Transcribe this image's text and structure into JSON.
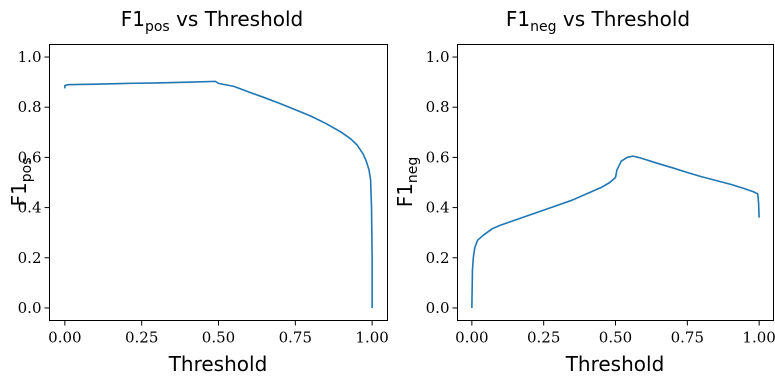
{
  "chart_data": [
    {
      "type": "line",
      "title": {
        "main": "F1",
        "sub": "pos",
        "rest": " vs Threshold"
      },
      "xlabel": "Threshold",
      "ylabel": {
        "main": "F1",
        "sub": "pos"
      },
      "xlim": [
        -0.05,
        1.05
      ],
      "ylim": [
        -0.05,
        1.05
      ],
      "xticks": [
        {
          "value": 0.0,
          "label": "0.00"
        },
        {
          "value": 0.25,
          "label": "0.25"
        },
        {
          "value": 0.5,
          "label": "0.50"
        },
        {
          "value": 0.75,
          "label": "0.75"
        },
        {
          "value": 1.0,
          "label": "1.00"
        }
      ],
      "yticks": [
        {
          "value": 0.0,
          "label": "0.0"
        },
        {
          "value": 0.2,
          "label": "0.2"
        },
        {
          "value": 0.4,
          "label": "0.4"
        },
        {
          "value": 0.6,
          "label": "0.6"
        },
        {
          "value": 0.8,
          "label": "0.8"
        },
        {
          "value": 1.0,
          "label": "1.0"
        }
      ],
      "grid": false,
      "color": "#1f77b4",
      "series": [
        {
          "x": [
            0.0,
            0.0,
            0.01,
            0.05,
            0.1,
            0.2,
            0.3,
            0.4,
            0.49,
            0.5,
            0.55,
            0.6,
            0.65,
            0.7,
            0.75,
            0.8,
            0.85,
            0.9,
            0.93,
            0.95,
            0.97,
            0.98,
            0.99,
            0.995,
            0.998,
            1.0,
            1.0
          ],
          "y": [
            0.875,
            0.886,
            0.89,
            0.891,
            0.892,
            0.895,
            0.897,
            0.9,
            0.903,
            0.895,
            0.883,
            0.86,
            0.838,
            0.815,
            0.79,
            0.765,
            0.735,
            0.7,
            0.674,
            0.651,
            0.615,
            0.588,
            0.55,
            0.51,
            0.4,
            0.2,
            0.0
          ]
        }
      ]
    },
    {
      "type": "line",
      "title": {
        "main": "F1",
        "sub": "neg",
        "rest": " vs Threshold"
      },
      "xlabel": "Threshold",
      "ylabel": {
        "main": "F1",
        "sub": "neg"
      },
      "xlim": [
        -0.05,
        1.05
      ],
      "ylim": [
        -0.05,
        1.05
      ],
      "xticks": [
        {
          "value": 0.0,
          "label": "0.00"
        },
        {
          "value": 0.25,
          "label": "0.25"
        },
        {
          "value": 0.5,
          "label": "0.50"
        },
        {
          "value": 0.75,
          "label": "0.75"
        },
        {
          "value": 1.0,
          "label": "1.00"
        }
      ],
      "yticks": [
        {
          "value": 0.0,
          "label": "0.0"
        },
        {
          "value": 0.2,
          "label": "0.2"
        },
        {
          "value": 0.4,
          "label": "0.4"
        },
        {
          "value": 0.6,
          "label": "0.6"
        },
        {
          "value": 0.8,
          "label": "0.8"
        },
        {
          "value": 1.0,
          "label": "1.0"
        }
      ],
      "grid": false,
      "color": "#1f77b4",
      "series": [
        {
          "x": [
            0.0,
            0.002,
            0.005,
            0.01,
            0.02,
            0.04,
            0.07,
            0.1,
            0.15,
            0.2,
            0.25,
            0.3,
            0.35,
            0.4,
            0.45,
            0.48,
            0.5,
            0.505,
            0.52,
            0.54,
            0.56,
            0.58,
            0.6,
            0.65,
            0.7,
            0.75,
            0.8,
            0.85,
            0.9,
            0.95,
            0.98,
            0.995,
            0.998,
            1.0
          ],
          "y": [
            0.0,
            0.15,
            0.2,
            0.24,
            0.27,
            0.29,
            0.315,
            0.33,
            0.35,
            0.37,
            0.39,
            0.41,
            0.43,
            0.455,
            0.48,
            0.5,
            0.52,
            0.55,
            0.585,
            0.6,
            0.605,
            0.6,
            0.593,
            0.575,
            0.558,
            0.54,
            0.523,
            0.508,
            0.493,
            0.475,
            0.463,
            0.455,
            0.42,
            0.36
          ]
        }
      ]
    }
  ]
}
